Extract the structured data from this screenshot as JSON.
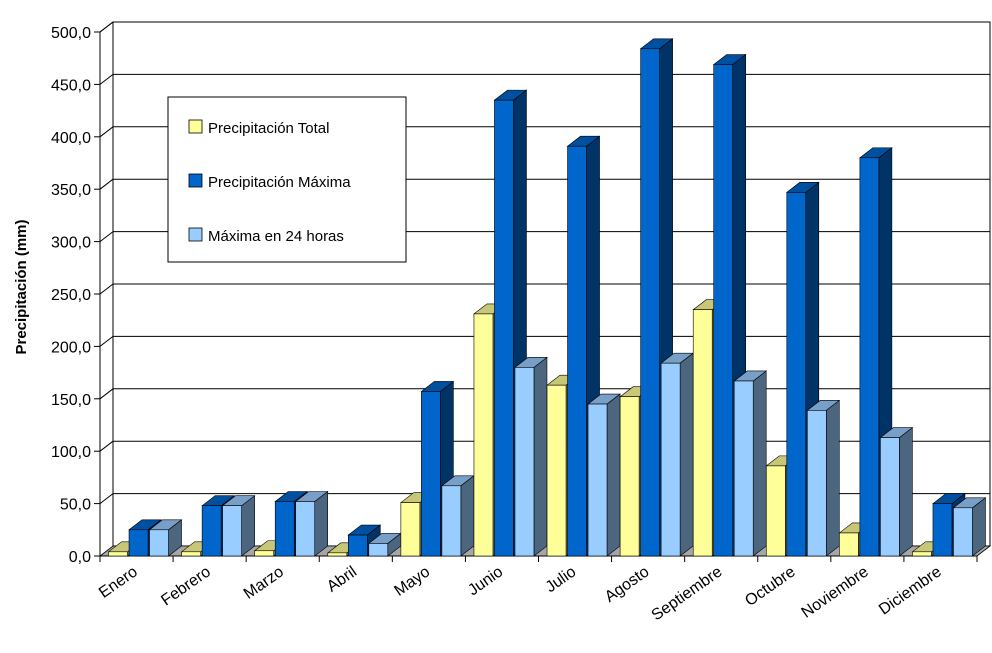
{
  "chart_data": {
    "type": "bar",
    "title": "",
    "xlabel": "",
    "ylabel": "Precipitación (mm)",
    "ylim": [
      0,
      500
    ],
    "ytick_step": 50,
    "ytick_labels": [
      "0,0",
      "50,0",
      "100,0",
      "150,0",
      "200,0",
      "250,0",
      "300,0",
      "350,0",
      "400,0",
      "450,0",
      "500,0"
    ],
    "grid": true,
    "legend_position": "top-left",
    "categories": [
      "Enero",
      "Febrero",
      "Marzo",
      "Abril",
      "Mayo",
      "Junio",
      "Julio",
      "Agosto",
      "Septiembre",
      "Octubre",
      "Noviembre",
      "Diciembre"
    ],
    "series": [
      {
        "name": "Precipitación Total",
        "color": "#ffff99",
        "values": [
          4,
          4,
          5,
          3,
          51,
          231,
          163,
          152,
          235,
          86,
          22,
          4
        ]
      },
      {
        "name": "Precipitación Máxima",
        "color": "#0066cc",
        "values": [
          25,
          48,
          52,
          20,
          157,
          435,
          391,
          484,
          469,
          347,
          380,
          50
        ]
      },
      {
        "name": "Máxima en 24 horas",
        "color": "#99ccff",
        "values": [
          25,
          48,
          52,
          12,
          67,
          180,
          145,
          184,
          167,
          139,
          113,
          46
        ]
      }
    ]
  }
}
